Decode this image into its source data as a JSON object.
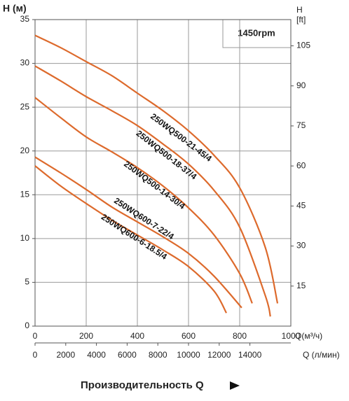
{
  "chart_data": {
    "type": "line",
    "y_label": "H (м)",
    "y2_label": [
      "H",
      "[ft]"
    ],
    "x_label": "Q(м³/ч)",
    "x2_label": "Q (л/мин)",
    "footer": "Производительность Q",
    "annotation": "1450rpm",
    "xlim": [
      0,
      1000
    ],
    "xticks": [
      0,
      200,
      400,
      600,
      800,
      1000
    ],
    "x2lim": [
      0,
      16666.67
    ],
    "x2ticks": [
      0,
      2000,
      4000,
      6000,
      8000,
      10000,
      12000,
      14000
    ],
    "ylim": [
      0,
      35
    ],
    "yticks": [
      0,
      5,
      10,
      15,
      20,
      25,
      30,
      35
    ],
    "y2lim": [
      0,
      114.83
    ],
    "y2ticks": [
      15,
      30,
      45,
      60,
      75,
      90,
      105
    ],
    "grid": true,
    "series": [
      {
        "name": "250WQ500-21-45/4",
        "color": "#dd6a2c",
        "x": [
          0,
          100,
          200,
          300,
          400,
          500,
          600,
          700,
          800,
          900,
          948
        ],
        "values": [
          33.2,
          31.8,
          30.2,
          28.6,
          26.6,
          24.6,
          22.3,
          19.5,
          15.8,
          9,
          2.6
        ]
      },
      {
        "name": "250WQ500-18-37/4",
        "color": "#dd6a2c",
        "x": [
          0,
          100,
          200,
          300,
          400,
          500,
          600,
          700,
          800,
          900,
          920
        ],
        "values": [
          29.7,
          28,
          26.2,
          24.6,
          22.9,
          20.8,
          18.5,
          15.5,
          11.3,
          3.5,
          1.1
        ]
      },
      {
        "name": "250WQ500-14-30/4",
        "color": "#dd6a2c",
        "x": [
          0,
          100,
          200,
          300,
          400,
          500,
          600,
          700,
          800,
          849
        ],
        "values": [
          26.1,
          23.8,
          21.6,
          19.9,
          18.1,
          16,
          13.5,
          10.4,
          6,
          2.6
        ]
      },
      {
        "name": "250WQ600-7-22/4",
        "color": "#dd6a2c",
        "x": [
          0,
          100,
          200,
          300,
          400,
          500,
          600,
          700,
          808
        ],
        "values": [
          19.3,
          17.5,
          15.6,
          13.6,
          11.9,
          10.2,
          8.3,
          5.7,
          2.1
        ]
      },
      {
        "name": "250WQ600-6-18.5/4",
        "color": "#dd6a2c",
        "x": [
          0,
          100,
          200,
          300,
          400,
          500,
          600,
          700,
          748
        ],
        "values": [
          18.3,
          16,
          14,
          12.1,
          10.4,
          8.7,
          6.8,
          4,
          1.5
        ]
      }
    ]
  }
}
